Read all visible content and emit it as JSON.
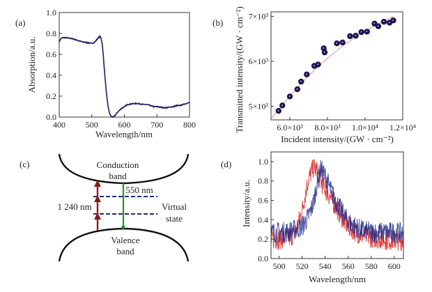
{
  "chart_data": [
    {
      "id": "a",
      "panel_label": "(a)",
      "type": "line",
      "title": "",
      "xlabel": "Wavelength/nm",
      "ylabel": "Absorption/a.u.",
      "xlim": [
        400,
        800
      ],
      "ylim": [
        0.0,
        1.0
      ],
      "xticks": [
        "400",
        "500",
        "600",
        "700",
        "800"
      ],
      "xtick_values": [
        400,
        500,
        600,
        700,
        800
      ],
      "yticks": [
        "0.0",
        "0.2",
        "0.4",
        "0.6",
        "0.8",
        "1.0"
      ],
      "ytick_values": [
        0.0,
        0.2,
        0.4,
        0.6,
        0.8,
        1.0
      ],
      "grid": false,
      "series": [
        {
          "name": "absorption",
          "color": "#1b1f5e",
          "x": [
            400,
            405,
            410,
            420,
            430,
            440,
            450,
            460,
            470,
            480,
            490,
            500,
            505,
            510,
            515,
            520,
            525,
            528,
            532,
            535,
            540,
            545,
            550,
            555,
            560,
            565,
            570,
            575,
            580,
            590,
            600,
            610,
            620,
            630,
            640,
            650,
            660,
            670,
            680,
            690,
            700,
            710,
            720,
            730,
            740,
            750,
            760,
            770,
            780,
            790,
            800
          ],
          "y": [
            0.72,
            0.75,
            0.76,
            0.76,
            0.755,
            0.75,
            0.74,
            0.73,
            0.72,
            0.715,
            0.71,
            0.705,
            0.71,
            0.72,
            0.74,
            0.76,
            0.77,
            0.76,
            0.7,
            0.6,
            0.4,
            0.22,
            0.1,
            0.03,
            0.005,
            0.0,
            0.01,
            0.03,
            0.05,
            0.08,
            0.1,
            0.12,
            0.125,
            0.13,
            0.13,
            0.125,
            0.12,
            0.12,
            0.11,
            0.1,
            0.1,
            0.095,
            0.09,
            0.09,
            0.095,
            0.1,
            0.11,
            0.11,
            0.12,
            0.13,
            0.14
          ]
        }
      ]
    },
    {
      "id": "b",
      "panel_label": "(b)",
      "type": "scatter",
      "title": "",
      "xlabel": "Incident intensity/(GW · cm⁻²)",
      "ylabel": "Transmitted intensity/(GW · cm⁻²)",
      "xlim": [
        5000,
        12000
      ],
      "ylim": [
        4700,
        7100
      ],
      "xticks": [
        "6.0×10³",
        "8.0×10³",
        "1.0×10⁴",
        "1.2×10⁴"
      ],
      "xtick_values": [
        6000,
        8000,
        10000,
        12000
      ],
      "yticks": [
        "5×10³",
        "6×10³",
        "7×10³"
      ],
      "ytick_values": [
        5000,
        6000,
        7000
      ],
      "grid": false,
      "series": [
        {
          "name": "measured",
          "color": "#1a1450",
          "x": [
            5400,
            5600,
            6000,
            6400,
            6600,
            6900,
            7300,
            7500,
            7800,
            7850,
            8500,
            8800,
            9200,
            9500,
            9800,
            10100,
            10500,
            10700,
            11000,
            11300,
            11500
          ],
          "y": [
            4900,
            5020,
            5220,
            5380,
            5550,
            5710,
            5900,
            5930,
            6290,
            6200,
            6400,
            6420,
            6560,
            6570,
            6650,
            6660,
            6840,
            6780,
            6880,
            6860,
            6910
          ]
        },
        {
          "name": "fit",
          "color": "#e0908f",
          "type": "line",
          "x": [
            5000,
            5500,
            6000,
            6500,
            7000,
            7500,
            8000,
            8500,
            9000,
            9500,
            10000,
            10500,
            11000,
            11500
          ],
          "y": [
            4720,
            4980,
            5230,
            5460,
            5680,
            5880,
            6070,
            6240,
            6400,
            6540,
            6670,
            6790,
            6900,
            7000
          ]
        }
      ]
    },
    {
      "id": "d",
      "panel_label": "(d)",
      "type": "line",
      "title": "",
      "xlabel": "Wavelength/nm",
      "ylabel": "Intensity/a.u.",
      "xlim": [
        493,
        608
      ],
      "ylim": [
        0.0,
        1.1
      ],
      "xticks": [
        "500",
        "520",
        "540",
        "560",
        "580",
        "600"
      ],
      "xtick_values": [
        500,
        520,
        540,
        560,
        580,
        600
      ],
      "yticks": [
        "0.0",
        "0.2",
        "0.4",
        "0.6",
        "0.8",
        "1.0"
      ],
      "ytick_values": [
        0.0,
        0.2,
        0.4,
        0.6,
        0.8,
        1.0
      ],
      "grid": false,
      "series": [
        {
          "name": "spectrum-blue",
          "color": "#1f2a8a",
          "peak": 536,
          "x": [
            493,
            500,
            510,
            520,
            525,
            530,
            533,
            536,
            540,
            545,
            550,
            555,
            560,
            570,
            580,
            590,
            600,
            608
          ],
          "y": [
            0.27,
            0.27,
            0.28,
            0.33,
            0.42,
            0.58,
            0.78,
            0.92,
            0.85,
            0.7,
            0.58,
            0.47,
            0.38,
            0.3,
            0.27,
            0.27,
            0.27,
            0.26
          ]
        },
        {
          "name": "spectrum-red",
          "color": "#d81e1e",
          "peak": 530,
          "x": [
            493,
            500,
            510,
            515,
            520,
            525,
            530,
            533,
            536,
            540,
            545,
            550,
            555,
            560,
            570,
            580,
            590,
            600,
            608
          ],
          "y": [
            0.2,
            0.2,
            0.22,
            0.3,
            0.5,
            0.8,
            0.95,
            0.9,
            0.8,
            0.72,
            0.62,
            0.52,
            0.42,
            0.33,
            0.25,
            0.22,
            0.2,
            0.19,
            0.19
          ]
        }
      ]
    }
  ],
  "diagram_c": {
    "panel_label": "(c)",
    "conduction_label_1": "Conduction",
    "conduction_label_2": "band",
    "valence_label_1": "Valence",
    "valence_label_2": "band",
    "virtual_label_1": "Virtual",
    "virtual_label_2": "state",
    "excitation_label": "1 240 nm",
    "emission_label": "550 nm",
    "excitation_color": "#8b1a1a",
    "emission_color": "#1e9a1e",
    "virtual_color": "#1c2a7a",
    "photon_count": 3
  }
}
